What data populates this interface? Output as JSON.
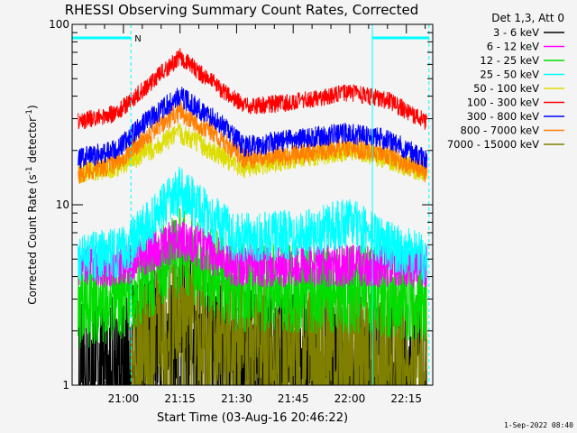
{
  "chart_data": {
    "type": "line",
    "title": "RHESSI Observing Summary Count Rates, Corrected",
    "xlabel": "Start Time (03-Aug-16 20:46:22)",
    "ylabel_main": "Corrected Count Rate (s",
    "ylabel_sup1": "-1",
    "ylabel_mid": " detector",
    "ylabel_sup2": "-1",
    "ylabel_end": ")",
    "yscale": "log",
    "ylim": [
      1,
      100
    ],
    "y_ticks": [
      "1",
      "10",
      "100"
    ],
    "x_ticks": [
      "21:00",
      "21:15",
      "21:30",
      "21:45",
      "22:00",
      "22:15"
    ],
    "x_range_minutes": [
      46.4,
      142
    ],
    "legend_header": "Det 1,3, Att 0",
    "annotation_n": "N",
    "night_intervals": [
      [
        46.4,
        62
      ],
      [
        126,
        141
      ]
    ],
    "saa_lines": [
      62,
      126,
      141
    ],
    "timestamp": "1-Sep-2022 08:40",
    "series": [
      {
        "name": "3 - 6 keV",
        "color": "#000000",
        "values": [
          [
            48,
            1.4
          ],
          [
            60,
            1.5
          ],
          [
            75,
            2.5
          ],
          [
            90,
            1.5
          ],
          [
            110,
            1.5
          ],
          [
            125,
            1.5
          ],
          [
            140,
            1.3
          ]
        ],
        "noise": 0.35
      },
      {
        "name": "6 - 12 keV",
        "color": "#ff00ff",
        "values": [
          [
            48,
            4.5
          ],
          [
            60,
            4.6
          ],
          [
            75,
            6.5
          ],
          [
            90,
            4.6
          ],
          [
            110,
            4.6
          ],
          [
            125,
            4.6
          ],
          [
            140,
            4.5
          ]
        ],
        "noise": 0.12
      },
      {
        "name": "12 - 25 keV",
        "color": "#00dd00",
        "values": [
          [
            48,
            2.7
          ],
          [
            60,
            3.2
          ],
          [
            75,
            5.5
          ],
          [
            90,
            3.5
          ],
          [
            110,
            3.4
          ],
          [
            125,
            3.4
          ],
          [
            140,
            3.0
          ]
        ],
        "noise": 0.25
      },
      {
        "name": "25 - 50 keV",
        "color": "#00ffff",
        "values": [
          [
            48,
            5
          ],
          [
            60,
            5.5
          ],
          [
            75,
            12
          ],
          [
            90,
            6.5
          ],
          [
            110,
            7
          ],
          [
            120,
            8
          ],
          [
            130,
            6
          ],
          [
            140,
            5
          ]
        ],
        "noise": 0.14
      },
      {
        "name": "50 - 100 keV",
        "color": "#dddd00",
        "values": [
          [
            48,
            15
          ],
          [
            58,
            16
          ],
          [
            65,
            19
          ],
          [
            75,
            25
          ],
          [
            85,
            19
          ],
          [
            92,
            16
          ],
          [
            105,
            18
          ],
          [
            120,
            20
          ],
          [
            130,
            18
          ],
          [
            140,
            15
          ]
        ],
        "noise": 0.06
      },
      {
        "name": "100 - 300 keV",
        "color": "#ff0000",
        "values": [
          [
            48,
            29
          ],
          [
            58,
            32
          ],
          [
            66,
            45
          ],
          [
            75,
            66
          ],
          [
            84,
            47
          ],
          [
            92,
            35
          ],
          [
            105,
            37
          ],
          [
            120,
            42
          ],
          [
            130,
            38
          ],
          [
            140,
            29
          ]
        ],
        "noise": 0.05
      },
      {
        "name": "300 - 800 keV",
        "color": "#0000ff",
        "values": [
          [
            48,
            18
          ],
          [
            58,
            20
          ],
          [
            66,
            29
          ],
          [
            75,
            40
          ],
          [
            85,
            29
          ],
          [
            92,
            21
          ],
          [
            105,
            23
          ],
          [
            120,
            25
          ],
          [
            130,
            23
          ],
          [
            140,
            18
          ]
        ],
        "noise": 0.06
      },
      {
        "name": "800 - 7000 keV",
        "color": "#ff8000",
        "values": [
          [
            48,
            15
          ],
          [
            58,
            17
          ],
          [
            66,
            24
          ],
          [
            75,
            33
          ],
          [
            85,
            24
          ],
          [
            92,
            18
          ],
          [
            105,
            19
          ],
          [
            120,
            21
          ],
          [
            130,
            19
          ],
          [
            140,
            15
          ]
        ],
        "noise": 0.06
      },
      {
        "name": "7000 - 15000 keV",
        "color": "#808000",
        "values": [
          [
            62,
            1.5
          ],
          [
            70,
            2.5
          ],
          [
            75,
            3.0
          ],
          [
            85,
            2.2
          ],
          [
            100,
            1.8
          ],
          [
            120,
            1.8
          ],
          [
            140,
            1.5
          ]
        ],
        "noise": 0.35
      }
    ]
  }
}
